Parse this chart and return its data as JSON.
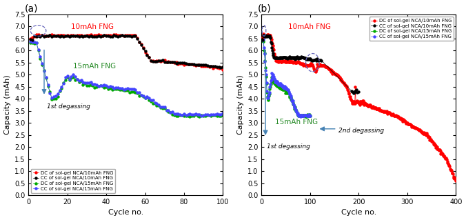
{
  "panel_a": {
    "title": "(a)",
    "xlabel": "Cycle no.",
    "ylabel": "Capacity (mAh)",
    "xlim": [
      0,
      100
    ],
    "ylim": [
      0.0,
      7.5
    ],
    "yticks": [
      0.0,
      0.5,
      1.0,
      1.5,
      2.0,
      2.5,
      3.0,
      3.5,
      4.0,
      4.5,
      5.0,
      5.5,
      6.0,
      6.5,
      7.0,
      7.5
    ],
    "xticks": [
      0,
      20,
      40,
      60,
      80,
      100
    ],
    "annotation_10mAh": "10mAh FNG",
    "annotation_15mAh": "15mAh FNG",
    "annotation_degas": "1st degassing",
    "label_cc10": "CC of sol-gel NCA/10mAh FNG",
    "label_dc10": "DC of sol-gel NCA/10mAh FNG",
    "label_cc15": "CC of sol-gel NCA/15mAh FNG",
    "label_dc15": "DC of sol-gel NCA/15mAh FNG",
    "color_cc10": "#000000",
    "color_dc10": "#ff0000",
    "color_cc15": "#4444ff",
    "color_dc15": "#00aa00"
  },
  "panel_b": {
    "title": "(b)",
    "xlabel": "Cycle no.",
    "ylabel": "Capacity (mAh)",
    "xlim": [
      0,
      400
    ],
    "ylim": [
      0.0,
      7.5
    ],
    "yticks": [
      0.0,
      0.5,
      1.0,
      1.5,
      2.0,
      2.5,
      3.0,
      3.5,
      4.0,
      4.5,
      5.0,
      5.5,
      6.0,
      6.5,
      7.0,
      7.5
    ],
    "xticks": [
      0,
      100,
      200,
      300,
      400
    ],
    "annotation_10mAh": "10mAh FNG",
    "annotation_15mAh": "15mAh FNG",
    "annotation_degas1": "1st degassing",
    "annotation_degas2": "2nd degassing",
    "label_cc10": "CC of sol-gel NCA/10mAh FNG",
    "label_dc10": "DC of sol-gel NCA/10mAh FNG",
    "label_cc15": "CC of sol-gel NCA/15mAh FNG",
    "label_dc15": "DC of sol-gel NCA/15mAh FNG",
    "color_cc10": "#000000",
    "color_dc10": "#ff0000",
    "color_cc15": "#4444ff",
    "color_dc15": "#00aa00"
  }
}
